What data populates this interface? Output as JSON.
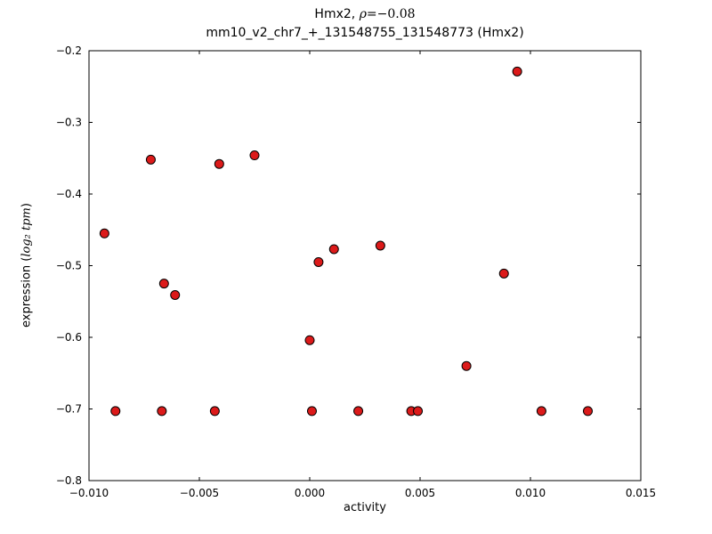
{
  "figure": {
    "title_prefix": "Hmx2, ",
    "title_rho": "ρ",
    "title_math_rest": "=−0.08",
    "subtitle": "mm10_v2_chr7_+_131548755_131548773 (Hmx2)",
    "xlabel": "activity",
    "ylabel_prefix": "expression (",
    "ylabel_math": "log₂ tpm",
    "ylabel_suffix": ")"
  },
  "chart_data": {
    "type": "scatter",
    "title": "Hmx2, ρ=−0.08",
    "subtitle": "mm10_v2_chr7_+_131548755_131548773 (Hmx2)",
    "xlabel": "activity",
    "ylabel": "expression (log2 tpm)",
    "correlation_rho": -0.08,
    "xlim": [
      -0.01,
      0.015
    ],
    "ylim": [
      -0.8,
      -0.2
    ],
    "grid": false,
    "legend": null,
    "xticks": [
      {
        "value": -0.01,
        "label": "−0.010"
      },
      {
        "value": -0.005,
        "label": "−0.005"
      },
      {
        "value": 0.0,
        "label": "0.000"
      },
      {
        "value": 0.005,
        "label": "0.005"
      },
      {
        "value": 0.01,
        "label": "0.010"
      },
      {
        "value": 0.015,
        "label": "0.015"
      }
    ],
    "yticks": [
      {
        "value": -0.8,
        "label": "−0.8"
      },
      {
        "value": -0.7,
        "label": "−0.7"
      },
      {
        "value": -0.6,
        "label": "−0.6"
      },
      {
        "value": -0.5,
        "label": "−0.5"
      },
      {
        "value": -0.4,
        "label": "−0.4"
      },
      {
        "value": -0.3,
        "label": "−0.3"
      },
      {
        "value": -0.2,
        "label": "−0.2"
      }
    ],
    "marker": {
      "shape": "circle",
      "fill": "#dc1a1a",
      "edge": "#000000",
      "radius": 5
    },
    "points": [
      [
        -0.0093,
        -0.455
      ],
      [
        -0.0088,
        -0.703
      ],
      [
        -0.0072,
        -0.352
      ],
      [
        -0.0067,
        -0.703
      ],
      [
        -0.0066,
        -0.525
      ],
      [
        -0.0061,
        -0.541
      ],
      [
        -0.0043,
        -0.703
      ],
      [
        -0.0041,
        -0.358
      ],
      [
        -0.0025,
        -0.346
      ],
      [
        0.0,
        -0.604
      ],
      [
        0.0001,
        -0.703
      ],
      [
        0.0004,
        -0.495
      ],
      [
        0.0011,
        -0.477
      ],
      [
        0.0022,
        -0.703
      ],
      [
        0.0032,
        -0.472
      ],
      [
        0.0046,
        -0.703
      ],
      [
        0.0049,
        -0.703
      ],
      [
        0.0071,
        -0.64
      ],
      [
        0.0088,
        -0.511
      ],
      [
        0.0094,
        -0.229
      ],
      [
        0.0105,
        -0.703
      ],
      [
        0.0126,
        -0.703
      ]
    ]
  }
}
